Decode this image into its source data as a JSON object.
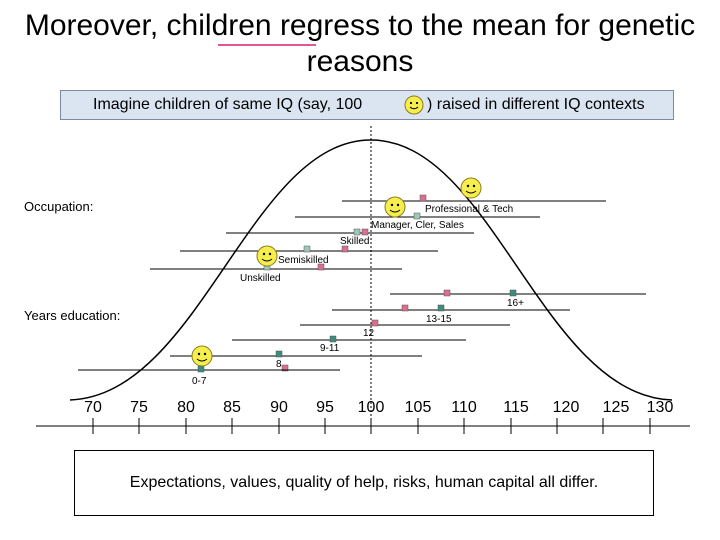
{
  "slide": {
    "title": "Moreover, children regress to the mean for genetic reasons",
    "banner_before": "Imagine children of same IQ (say, 100",
    "banner_after": ") raised in different IQ contexts",
    "footer": "Expectations, values, quality of help, risks, human capital all differ."
  },
  "diagram": {
    "sections": {
      "occupation": "Occupation:",
      "education": "Years education:"
    },
    "occupation_groups": [
      {
        "label": "Professional & Tech"
      },
      {
        "label": "Manager, Cler, Sales"
      },
      {
        "label": "Skilled"
      },
      {
        "label": "Semiskilled"
      },
      {
        "label": "Unskilled"
      }
    ],
    "education_groups": [
      {
        "label": "16+"
      },
      {
        "label": "13-15"
      },
      {
        "label": "12"
      },
      {
        "label": "9-11"
      },
      {
        "label": "8"
      },
      {
        "label": "0-7"
      }
    ],
    "axis": {
      "ticks": [
        "70",
        "75",
        "80",
        "85",
        "90",
        "95",
        "100",
        "105",
        "110",
        "115",
        "120",
        "125",
        "130"
      ]
    },
    "colors": {
      "curve": "#000000",
      "marker_pink": "#d9708f",
      "marker_teal": "#3d8c7c",
      "smiley_fill": "#f6ee4c",
      "highlight_underline": "#e0569b",
      "banner_fill": "#dbe5f1"
    }
  }
}
